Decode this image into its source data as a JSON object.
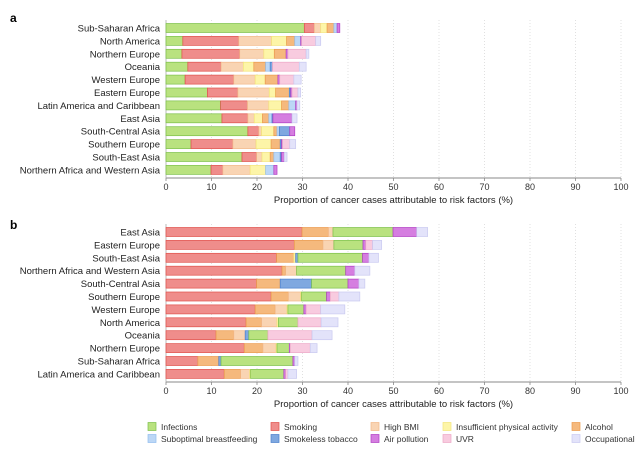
{
  "chart_data": [
    {
      "type": "bar",
      "orientation": "horizontal",
      "stacked": true,
      "panel_label": "a",
      "xlabel": "Proportion of cancer cases attributable to risk factors (%)",
      "xlim": [
        0,
        100
      ],
      "xticks": [
        0,
        10,
        20,
        30,
        40,
        50,
        60,
        70,
        80,
        90,
        100
      ],
      "grid": "vertical dotted",
      "categories": [
        "Sub-Saharan Africa",
        "North America",
        "Northern Europe",
        "Oceania",
        "Western Europe",
        "Eastern Europe",
        "Latin America and Caribbean",
        "East Asia",
        "South-Central Asia",
        "Southern Europe",
        "South-East Asia",
        "Northern Africa and Western Asia"
      ],
      "stack_order": [
        "Infections",
        "Smoking",
        "High BMI",
        "Insufficient physical activity",
        "Alcohol",
        "Suboptimal breastfeeding",
        "Smokeless tobacco",
        "Air pollution",
        "UVR",
        "Occupational"
      ],
      "series": [
        {
          "name": "Infections",
          "values": [
            30.4,
            3.7,
            3.5,
            4.8,
            4.2,
            9.1,
            12.0,
            12.3,
            18.0,
            5.5,
            16.7,
            9.9
          ]
        },
        {
          "name": "Smoking",
          "values": [
            2.2,
            12.3,
            12.7,
            7.3,
            10.7,
            6.7,
            5.9,
            5.7,
            2.4,
            9.2,
            3.2,
            2.6
          ]
        },
        {
          "name": "High BMI",
          "values": [
            1.4,
            7.2,
            5.3,
            4.9,
            4.7,
            6.9,
            4.7,
            1.4,
            0.6,
            5.1,
            1.2,
            6.0
          ]
        },
        {
          "name": "Insufficient physical activity",
          "values": [
            1.4,
            3.3,
            2.3,
            2.3,
            2.2,
            1.4,
            2.8,
            1.8,
            2.7,
            3.3,
            1.8,
            3.4
          ]
        },
        {
          "name": "Alcohol",
          "values": [
            1.5,
            1.8,
            2.6,
            2.6,
            2.8,
            3.0,
            1.6,
            1.4,
            0.7,
            2.0,
            0.8,
            0
          ]
        },
        {
          "name": "Suboptimal breastfeeding",
          "values": [
            0.7,
            1.3,
            0,
            1.0,
            0,
            0,
            1.5,
            0.7,
            0.5,
            0,
            1.4,
            1.8
          ]
        },
        {
          "name": "Smokeless tobacco",
          "values": [
            0,
            0,
            0,
            0.5,
            0,
            0.3,
            0,
            0.2,
            2.3,
            0.3,
            0.3,
            0
          ]
        },
        {
          "name": "Air pollution",
          "values": [
            0.6,
            0.2,
            0.4,
            0,
            0.4,
            0.3,
            0.3,
            4.2,
            1.1,
            0.2,
            0.6,
            0.7
          ]
        },
        {
          "name": "UVR",
          "values": [
            0,
            3.1,
            4.0,
            5.9,
            3.1,
            1.3,
            0,
            0,
            0,
            1.6,
            0,
            0
          ]
        },
        {
          "name": "Occupational",
          "values": [
            0,
            1.1,
            0.6,
            1.5,
            1.6,
            0.6,
            0.6,
            1.1,
            0,
            1.3,
            0.6,
            0
          ]
        }
      ]
    },
    {
      "type": "bar",
      "orientation": "horizontal",
      "stacked": true,
      "panel_label": "b",
      "xlabel": "Proportion of cancer cases attributable to risk factors (%)",
      "xlim": [
        0,
        100
      ],
      "xticks": [
        0,
        10,
        20,
        30,
        40,
        50,
        60,
        70,
        80,
        90,
        100
      ],
      "grid": "vertical dotted",
      "categories": [
        "East Asia",
        "Eastern Europe",
        "South-East Asia",
        "Northern Africa and Western Asia",
        "South-Central Asia",
        "Southern Europe",
        "Western Europe",
        "North America",
        "Oceania",
        "Northern Europe",
        "Sub-Saharan Africa",
        "Latin America and Caribbean"
      ],
      "stack_order": [
        "Smoking",
        "Alcohol",
        "High BMI",
        "Insufficient physical activity",
        "Suboptimal breastfeeding",
        "Smokeless tobacco",
        "Infections",
        "Air pollution",
        "UVR",
        "Occupational"
      ],
      "series": [
        {
          "name": "Infections",
          "values": [
            13.2,
            6.4,
            14.2,
            10.8,
            8.0,
            5.5,
            3.5,
            4.3,
            4.2,
            2.7,
            15.8,
            7.3
          ]
        },
        {
          "name": "Smoking",
          "values": [
            29.9,
            28.2,
            24.3,
            25.5,
            19.9,
            23.1,
            19.6,
            17.6,
            11.0,
            17.2,
            7.0,
            12.8
          ]
        },
        {
          "name": "High BMI",
          "values": [
            1.0,
            2.4,
            0,
            2.4,
            0,
            2.7,
            2.6,
            3.4,
            2.5,
            2.9,
            0,
            2.0
          ]
        },
        {
          "name": "Insufficient physical activity",
          "values": [
            0,
            0,
            0.4,
            0,
            0,
            0.2,
            0.2,
            0.3,
            0,
            0.2,
            0,
            0.2
          ]
        },
        {
          "name": "Alcohol",
          "values": [
            5.8,
            6.3,
            3.8,
            0.8,
            5.2,
            3.8,
            4.4,
            3.4,
            3.9,
            4.1,
            4.6,
            3.6
          ]
        },
        {
          "name": "Suboptimal breastfeeding",
          "values": [
            0,
            0,
            0,
            0,
            0,
            0,
            0,
            0,
            0,
            0,
            0,
            0
          ]
        },
        {
          "name": "Smokeless tobacco",
          "values": [
            0,
            0,
            0.5,
            0,
            6.9,
            0,
            0,
            0,
            0.8,
            0,
            0.5,
            0
          ]
        },
        {
          "name": "Air pollution",
          "values": [
            5.2,
            0.6,
            1.4,
            2.0,
            2.4,
            0.8,
            0.5,
            0,
            0,
            0.2,
            0.4,
            0.4
          ]
        },
        {
          "name": "UVR",
          "values": [
            0,
            1.5,
            0,
            0,
            0,
            1.9,
            3.2,
            5.1,
            9.7,
            4.4,
            0,
            0.5
          ]
        },
        {
          "name": "Occupational",
          "values": [
            2.4,
            2.0,
            2.1,
            3.3,
            1.3,
            4.6,
            5.3,
            3.7,
            4.4,
            1.5,
            0.7,
            1.9
          ]
        }
      ]
    }
  ],
  "legend": {
    "placement": "bottom",
    "items": [
      {
        "name": "Infections",
        "color": "#b9e27f",
        "border": "#7cc04a"
      },
      {
        "name": "Smoking",
        "color": "#ef8d8b",
        "border": "#e0504b"
      },
      {
        "name": "High BMI",
        "color": "#f9d4b3",
        "border": "#f2b889"
      },
      {
        "name": "Insufficient physical activity",
        "color": "#fdf5a8",
        "border": "#f3e57a"
      },
      {
        "name": "Alcohol",
        "color": "#f5b97d",
        "border": "#eb9a4d"
      },
      {
        "name": "Suboptimal breastfeeding",
        "color": "#bcd7f6",
        "border": "#92bdee"
      },
      {
        "name": "Smokeless tobacco",
        "color": "#7fa8e0",
        "border": "#4b7fcc"
      },
      {
        "name": "Air pollution",
        "color": "#d57ee0",
        "border": "#b03ec4"
      },
      {
        "name": "UVR",
        "color": "#f8cbdf",
        "border": "#eda7c6"
      },
      {
        "name": "Occupational",
        "color": "#e3e3fa",
        "border": "#c9c9f0"
      }
    ]
  }
}
